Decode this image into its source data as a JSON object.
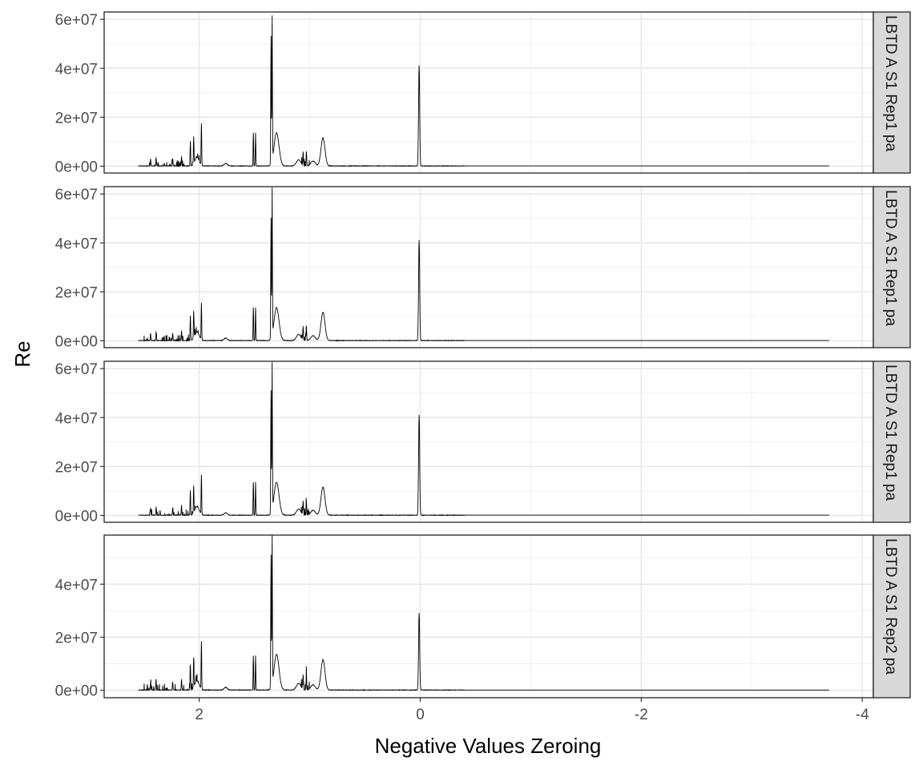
{
  "chart_data": {
    "type": "line",
    "xlabel": "Negative Values Zeroing",
    "ylabel": "Re",
    "x_reversed": true,
    "xlim": [
      2.86,
      -4.1
    ],
    "x_ticks": [
      2,
      0,
      -2,
      -4
    ],
    "x_tick_labels": [
      "2",
      "0",
      "-2",
      "-4"
    ],
    "grid": true,
    "line_color": "#000000",
    "strip_color": "#d9d9d9",
    "panels": [
      {
        "strip": "LBTD A S1 Rep1 pa",
        "ylim": [
          -2800000,
          63000000
        ],
        "y_ticks": [
          0,
          20000000,
          40000000,
          60000000
        ],
        "y_tick_labels": [
          "0e+00",
          "2e+07",
          "4e+07",
          "6e+07"
        ],
        "peaks": [
          {
            "x": 2.44,
            "y": 3000000
          },
          {
            "x": 2.39,
            "y": 3500000
          },
          {
            "x": 2.24,
            "y": 3000000
          },
          {
            "x": 2.16,
            "y": 4000000
          },
          {
            "x": 2.08,
            "y": 10000000
          },
          {
            "x": 2.05,
            "y": 11000000
          },
          {
            "x": 1.98,
            "y": 17000000
          },
          {
            "x": 1.51,
            "y": 13500000
          },
          {
            "x": 1.49,
            "y": 13500000
          },
          {
            "x": 1.35,
            "y": 52000000
          },
          {
            "x": 1.34,
            "y": 59000000
          },
          {
            "x": 1.3,
            "y": 14500000
          },
          {
            "x": 1.06,
            "y": 5500000
          },
          {
            "x": 1.03,
            "y": 6000000
          },
          {
            "x": 0.88,
            "y": 12000000
          },
          {
            "x": 0.01,
            "y": 41000000
          }
        ]
      },
      {
        "strip": "LBTD A S1 Rep1 pa",
        "ylim": [
          -2800000,
          63000000
        ],
        "y_ticks": [
          0,
          20000000,
          40000000,
          60000000
        ],
        "y_tick_labels": [
          "0e+00",
          "2e+07",
          "4e+07",
          "6e+07"
        ],
        "peaks": [
          {
            "x": 2.44,
            "y": 3000000
          },
          {
            "x": 2.39,
            "y": 3500000
          },
          {
            "x": 2.24,
            "y": 3000000
          },
          {
            "x": 2.16,
            "y": 4000000
          },
          {
            "x": 2.08,
            "y": 10000000
          },
          {
            "x": 2.05,
            "y": 11000000
          },
          {
            "x": 1.98,
            "y": 15000000
          },
          {
            "x": 1.51,
            "y": 13500000
          },
          {
            "x": 1.49,
            "y": 13500000
          },
          {
            "x": 1.35,
            "y": 49000000
          },
          {
            "x": 1.34,
            "y": 60000000
          },
          {
            "x": 1.3,
            "y": 14500000
          },
          {
            "x": 1.06,
            "y": 5500000
          },
          {
            "x": 1.03,
            "y": 6000000
          },
          {
            "x": 0.88,
            "y": 12000000
          },
          {
            "x": 0.01,
            "y": 41000000
          }
        ]
      },
      {
        "strip": "LBTD A S1 Rep1 pa",
        "ylim": [
          -2800000,
          63000000
        ],
        "y_ticks": [
          0,
          20000000,
          40000000,
          60000000
        ],
        "y_tick_labels": [
          "0e+00",
          "2e+07",
          "4e+07",
          "6e+07"
        ],
        "peaks": [
          {
            "x": 2.44,
            "y": 3000000
          },
          {
            "x": 2.39,
            "y": 3500000
          },
          {
            "x": 2.24,
            "y": 3000000
          },
          {
            "x": 2.16,
            "y": 4000000
          },
          {
            "x": 2.08,
            "y": 10000000
          },
          {
            "x": 2.05,
            "y": 11000000
          },
          {
            "x": 1.98,
            "y": 16000000
          },
          {
            "x": 1.51,
            "y": 13500000
          },
          {
            "x": 1.49,
            "y": 13500000
          },
          {
            "x": 1.35,
            "y": 50000000
          },
          {
            "x": 1.34,
            "y": 60000000
          },
          {
            "x": 1.3,
            "y": 14500000
          },
          {
            "x": 1.06,
            "y": 5500000
          },
          {
            "x": 1.03,
            "y": 6000000
          },
          {
            "x": 0.88,
            "y": 12000000
          },
          {
            "x": 0.01,
            "y": 41000000
          }
        ]
      },
      {
        "strip": "LBTD A S1 Rep2 pa",
        "ylim": [
          -2800000,
          58500000
        ],
        "y_ticks": [
          0,
          20000000,
          40000000
        ],
        "y_tick_labels": [
          "0e+00",
          "2e+07",
          "4e+07"
        ],
        "peaks": [
          {
            "x": 2.44,
            "y": 3000000
          },
          {
            "x": 2.39,
            "y": 3500000
          },
          {
            "x": 2.24,
            "y": 3000000
          },
          {
            "x": 2.16,
            "y": 4000000
          },
          {
            "x": 2.08,
            "y": 9500000
          },
          {
            "x": 2.05,
            "y": 11000000
          },
          {
            "x": 1.98,
            "y": 18000000
          },
          {
            "x": 1.51,
            "y": 13000000
          },
          {
            "x": 1.49,
            "y": 13000000
          },
          {
            "x": 1.35,
            "y": 50000000
          },
          {
            "x": 1.34,
            "y": 56000000
          },
          {
            "x": 1.3,
            "y": 14500000
          },
          {
            "x": 1.06,
            "y": 5500000
          },
          {
            "x": 1.03,
            "y": 6000000
          },
          {
            "x": 0.88,
            "y": 12000000
          },
          {
            "x": 0.01,
            "y": 29000000
          }
        ]
      }
    ]
  }
}
